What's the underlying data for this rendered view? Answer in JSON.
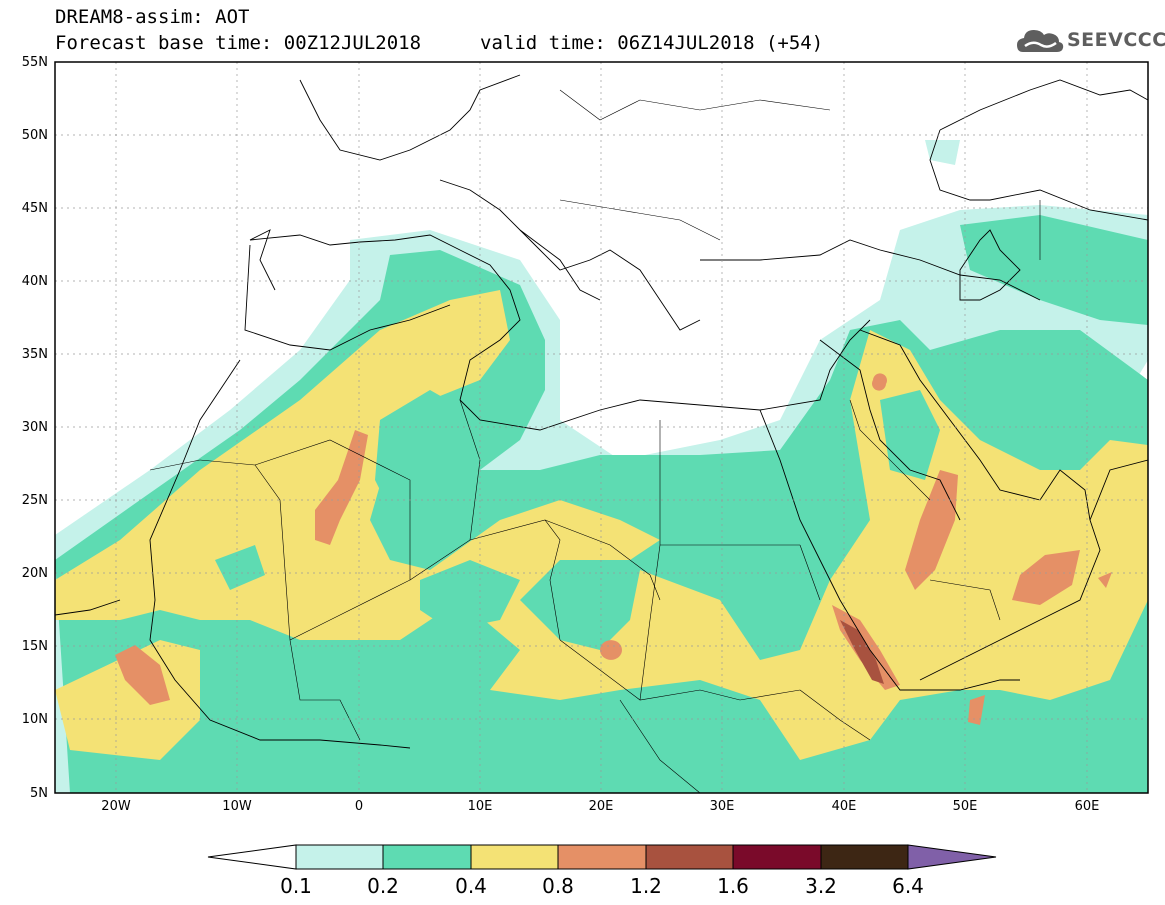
{
  "title": {
    "line1": "DREAM8-assim: AOT",
    "line2": "Forecast base time: 00Z12JUL2018",
    "valid": "valid time: 06Z14JUL2018 (+54)"
  },
  "logo": {
    "text": "SEEVCCC",
    "icon": "cloud-icon"
  },
  "axes": {
    "lat_labels": [
      "55N",
      "50N",
      "45N",
      "40N",
      "35N",
      "30N",
      "25N",
      "20N",
      "15N",
      "10N",
      "5N"
    ],
    "lon_labels": [
      "20W",
      "10W",
      "0",
      "10E",
      "20E",
      "30E",
      "40E",
      "50E",
      "60E"
    ]
  },
  "colorbar": {
    "labels": [
      "0.1",
      "0.2",
      "0.4",
      "0.8",
      "1.2",
      "1.6",
      "3.2",
      "6.4"
    ],
    "colors": [
      "#ffffff",
      "#c5f2ea",
      "#5edbb2",
      "#f4e275",
      "#e59066",
      "#a8523f",
      "#7a0a2a",
      "#3d2614",
      "#8060a8"
    ]
  }
}
